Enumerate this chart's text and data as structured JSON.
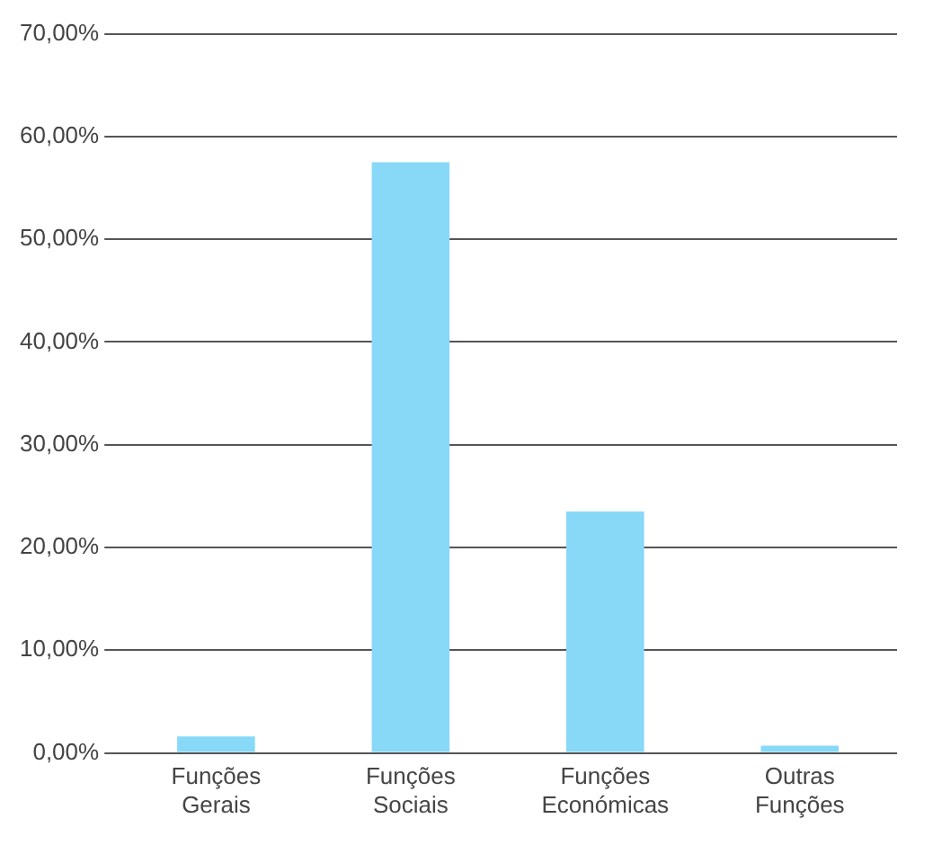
{
  "chart_data": {
    "type": "bar",
    "categories": [
      "Funções Gerais",
      "Funções Sociais",
      "Funções Económicas",
      "Outras Funções"
    ],
    "series": [
      {
        "color": "#88d8f8",
        "values": [
          1.6,
          57.5,
          23.5,
          0.7
        ]
      }
    ],
    "ylim": [
      0,
      70
    ],
    "yticks": [
      {
        "value": 0,
        "label": "0,00%"
      },
      {
        "value": 10,
        "label": "10,00%"
      },
      {
        "value": 20,
        "label": "20,00%"
      },
      {
        "value": 30,
        "label": "30,00%"
      },
      {
        "value": 40,
        "label": "40,00%"
      },
      {
        "value": 50,
        "label": "50,00%"
      },
      {
        "value": 60,
        "label": "60,00%"
      },
      {
        "value": 70,
        "label": "70,00%"
      }
    ],
    "grid": "y",
    "legend": false
  }
}
